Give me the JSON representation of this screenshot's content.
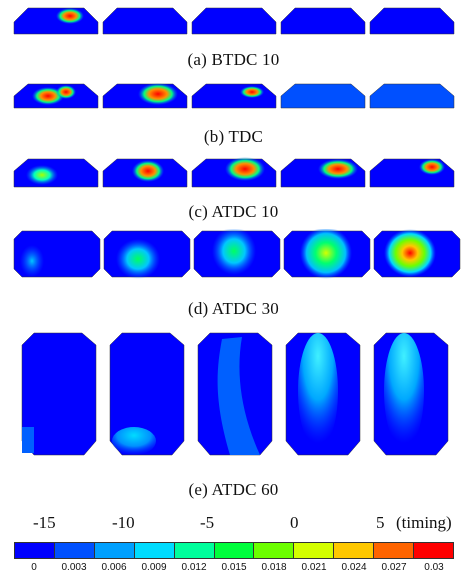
{
  "rows": [
    {
      "caption": "(a)  BTDC  10"
    },
    {
      "caption": "(b)  TDC"
    },
    {
      "caption": "(c)  ATDC  10"
    },
    {
      "caption": "(d)  ATDC  30"
    },
    {
      "caption": "(e)  ATDC  60"
    }
  ],
  "timing_labels": [
    "-15",
    "-10",
    "-5",
    "0",
    "5"
  ],
  "timing_unit": "(timing)",
  "legend": {
    "ticks": [
      "0",
      "0.003",
      "0.006",
      "0.009",
      "0.012",
      "0.015",
      "0.018",
      "0.021",
      "0.024",
      "0.027",
      "0.03"
    ],
    "colors": [
      "#0000ff",
      "#0050ff",
      "#00a0ff",
      "#00dcff",
      "#00ff9c",
      "#00ff3c",
      "#6cff00",
      "#d4ff00",
      "#ffc800",
      "#ff6400",
      "#ff0000"
    ]
  }
}
